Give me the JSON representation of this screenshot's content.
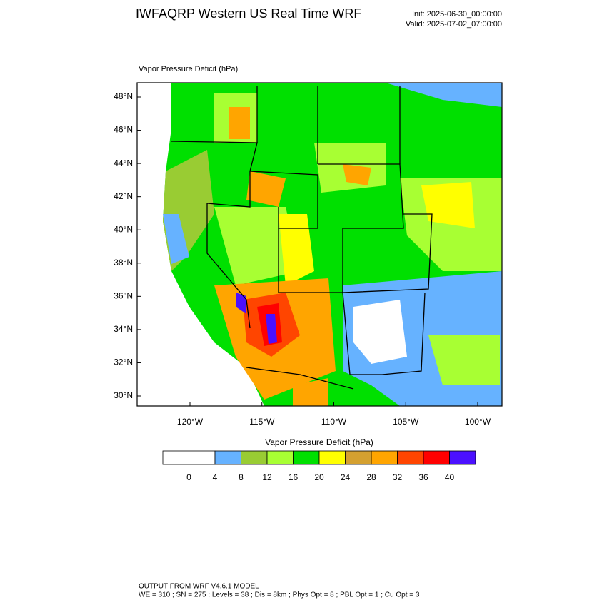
{
  "header": {
    "title": "IWFAQRP Western US Real Time WRF",
    "init": "Init: 2025-06-30_00:00:00",
    "valid": "Valid: 2025-07-02_07:00:00"
  },
  "plot": {
    "label": "Vapor Pressure Deficit   (hPa)",
    "lat_ticks": [
      {
        "value": 48,
        "label": "48°N"
      },
      {
        "value": 46,
        "label": "46°N"
      },
      {
        "value": 44,
        "label": "44°N"
      },
      {
        "value": 42,
        "label": "42°N"
      },
      {
        "value": 40,
        "label": "40°N"
      },
      {
        "value": 38,
        "label": "38°N"
      },
      {
        "value": 36,
        "label": "36°N"
      },
      {
        "value": 34,
        "label": "34°N"
      },
      {
        "value": 32,
        "label": "32°N"
      },
      {
        "value": 30,
        "label": "30°N"
      }
    ],
    "lon_ticks": [
      {
        "value": -120,
        "label": "120°W"
      },
      {
        "value": -115,
        "label": "115°W"
      },
      {
        "value": -110,
        "label": "110°W"
      },
      {
        "value": -105,
        "label": "105°W"
      },
      {
        "value": -100,
        "label": "100°W"
      }
    ]
  },
  "colorbar": {
    "title": "Vapor Pressure Deficit  (hPa)",
    "colors": [
      "#ffffff",
      "#ffffff",
      "#66b2ff",
      "#99cc33",
      "#a8ff33",
      "#00e000",
      "#ffff00",
      "#d4a030",
      "#ffa500",
      "#ff4500",
      "#ff0000",
      "#4b10ff"
    ],
    "ticks": [
      0,
      4,
      8,
      12,
      16,
      20,
      24,
      28,
      32,
      36,
      40
    ]
  },
  "footer": {
    "line1": "OUTPUT FROM WRF V4.6.1 MODEL",
    "line2": "WE = 310 ; SN = 275 ; Levels = 38 ; Dis = 8km ; Phys Opt = 8 ; PBL Opt = 1 ; Cu Opt = 3"
  }
}
